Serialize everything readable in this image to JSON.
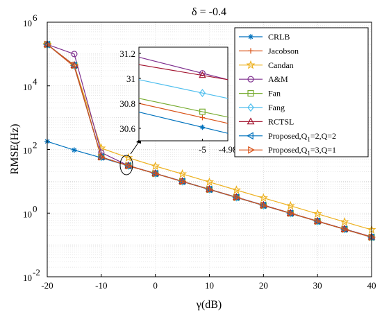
{
  "chart_data": {
    "type": "line",
    "title": "δ = -0.4",
    "xlabel": "γ(dB)",
    "ylabel": "RMSE(Hz)",
    "x_scale": "linear",
    "y_scale": "log",
    "xlim": [
      -20,
      40
    ],
    "ylim": [
      0.01,
      1000000
    ],
    "grid": true,
    "legend_position": "right",
    "x_ticks": [
      "-20",
      "-10",
      "0",
      "10",
      "20",
      "30",
      "40"
    ],
    "y_ticks": [
      {
        "base": "10",
        "exp": "-2",
        "value": 0.01
      },
      {
        "base": "10",
        "exp": "0",
        "value": 1
      },
      {
        "base": "10",
        "exp": "2",
        "value": 100
      },
      {
        "base": "10",
        "exp": "4",
        "value": 10000
      },
      {
        "base": "10",
        "exp": "6",
        "value": 1000000
      }
    ],
    "x": [
      -20,
      -15,
      -10,
      -5,
      0,
      5,
      10,
      15,
      20,
      25,
      30,
      35,
      40
    ],
    "series": [
      {
        "name": "CRLB",
        "color": "#0072BD",
        "marker": "asterisk",
        "values": [
          179,
          96,
          55,
          30.64,
          17.4,
          9.8,
          5.5,
          3.1,
          1.74,
          0.98,
          0.55,
          0.31,
          0.174
        ],
        "inset": [
          30.73,
          30.56
        ]
      },
      {
        "name": "Jacobson",
        "color": "#D95319",
        "marker": "plus",
        "values": [
          200000,
          40000,
          58,
          30.8,
          17.5,
          9.9,
          5.6,
          3.15,
          1.77,
          1.0,
          0.56,
          0.315,
          0.177
        ],
        "inset": [
          30.8,
          30.64
        ]
      },
      {
        "name": "Candan",
        "color": "#EDB120",
        "marker": "star",
        "values": [
          200000,
          44000,
          110,
          55,
          30,
          17,
          9.5,
          5.3,
          3.0,
          1.7,
          0.95,
          0.53,
          0.3
        ],
        "inset": null
      },
      {
        "name": "A&M",
        "color": "#7E2F8E",
        "marker": "circle",
        "values": [
          200000,
          100000,
          80,
          31.05,
          17.6,
          10,
          5.6,
          3.16,
          1.78,
          1.0,
          0.56,
          0.316,
          0.178
        ],
        "inset": [
          31.17,
          30.99
        ]
      },
      {
        "name": "Fan",
        "color": "#77AC30",
        "marker": "square",
        "values": [
          200000,
          44000,
          58,
          30.76,
          17.5,
          9.9,
          5.55,
          3.12,
          1.75,
          0.99,
          0.555,
          0.312,
          0.175
        ],
        "inset": [
          30.84,
          30.69
        ]
      },
      {
        "name": "Fang",
        "color": "#4DBEEE",
        "marker": "diamond",
        "values": [
          200000,
          44000,
          58,
          30.92,
          17.6,
          9.95,
          5.58,
          3.14,
          1.76,
          0.99,
          0.558,
          0.314,
          0.176
        ],
        "inset": [
          30.99,
          30.84
        ]
      },
      {
        "name": "RCTSL",
        "color": "#A2142F",
        "marker": "triangle-up",
        "values": [
          200000,
          44000,
          58,
          31.05,
          17.6,
          10,
          5.6,
          3.16,
          1.78,
          1.0,
          0.56,
          0.316,
          0.178
        ],
        "inset": [
          31.11,
          30.99
        ]
      },
      {
        "name": "Proposed,Q1=2,Q=2",
        "color": "#0072BD",
        "marker": "triangle-left",
        "values": [
          200000,
          44000,
          58,
          30.92,
          17.6,
          9.95,
          5.58,
          3.14,
          1.76,
          0.99,
          0.558,
          0.314,
          0.176
        ],
        "inset": null
      },
      {
        "name": "Proposed,Q1=3,Q=1",
        "color": "#D95319",
        "marker": "triangle-right",
        "values": [
          200000,
          44000,
          58,
          30.72,
          17.5,
          9.9,
          5.55,
          3.12,
          1.75,
          0.99,
          0.555,
          0.312,
          0.175
        ],
        "inset": null
      }
    ],
    "inset": {
      "x_ticks": [
        "-5",
        "-4.98"
      ],
      "y_ticks": [
        "30.6",
        "30.8",
        "31",
        "31.2"
      ],
      "xlim": [
        -5.05,
        -4.98
      ],
      "ylim": [
        30.5,
        31.25
      ]
    }
  },
  "legend_labels": [
    {
      "main": "CRLB"
    },
    {
      "main": "Jacobson"
    },
    {
      "main": "Candan"
    },
    {
      "main": "A&M"
    },
    {
      "main": "Fan"
    },
    {
      "main": "Fang"
    },
    {
      "main": "RCTSL"
    },
    {
      "main": "Proposed,Q",
      "sub": "1",
      "rest": "=2,Q=2"
    },
    {
      "main": "Proposed,Q",
      "sub": "1",
      "rest": "=3,Q=1"
    }
  ]
}
